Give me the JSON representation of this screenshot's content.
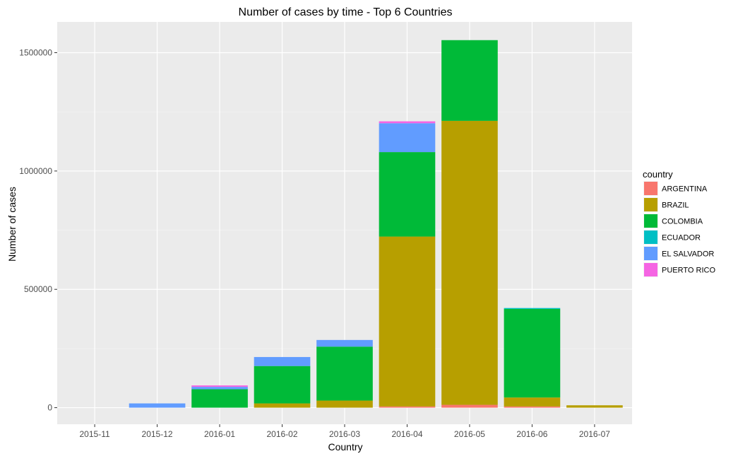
{
  "chart_data": {
    "type": "bar",
    "stacked": true,
    "title": "Number of cases by time - Top 6 Countries",
    "xlabel": "Country",
    "ylabel": "Number of cases",
    "categories": [
      "2015-11",
      "2015-12",
      "2016-01",
      "2016-02",
      "2016-03",
      "2016-04",
      "2016-05",
      "2016-06",
      "2016-07"
    ],
    "yticks": [
      0,
      500000,
      1000000,
      1500000
    ],
    "ytick_labels": [
      "0",
      "500000",
      "1000000",
      "1500000"
    ],
    "ylim": [
      -70000,
      1630000
    ],
    "grid": true,
    "legend": {
      "title": "country",
      "position": "right"
    },
    "series": [
      {
        "name": "ARGENTINA",
        "color": "#F8766D",
        "values": [
          0,
          0,
          0,
          0,
          0,
          5000,
          12000,
          5000,
          0
        ]
      },
      {
        "name": "BRAZIL",
        "color": "#B79F00",
        "values": [
          0,
          0,
          0,
          18000,
          30000,
          718000,
          1200000,
          38000,
          10000
        ]
      },
      {
        "name": "COLOMBIA",
        "color": "#00BA38",
        "values": [
          0,
          0,
          78000,
          158000,
          228000,
          357000,
          341000,
          374000,
          0
        ]
      },
      {
        "name": "ECUADOR",
        "color": "#00BFC4",
        "values": [
          0,
          0,
          0,
          0,
          0,
          0,
          0,
          4000,
          0
        ]
      },
      {
        "name": "EL SALVADOR",
        "color": "#619CFF",
        "values": [
          0,
          18000,
          10000,
          38000,
          28000,
          122000,
          0,
          0,
          0
        ]
      },
      {
        "name": "PUERTO RICO",
        "color": "#F564E3",
        "values": [
          0,
          0,
          6000,
          0,
          0,
          8000,
          0,
          0,
          0
        ]
      }
    ]
  }
}
